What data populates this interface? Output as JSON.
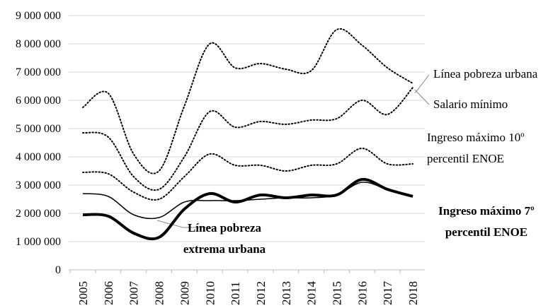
{
  "chart_data": {
    "type": "line",
    "categories": [
      "2005",
      "2006",
      "2007",
      "2008",
      "2009",
      "2010",
      "2011",
      "2012",
      "2013",
      "2014",
      "2015",
      "2016",
      "2017",
      "2018"
    ],
    "ylim": [
      0,
      9000000
    ],
    "yticks": [
      0,
      {
        "value": 1000000,
        "label": "1 000 000"
      },
      {
        "value": 2000000,
        "label": "2 000 000"
      },
      {
        "value": 3000000,
        "label": "3 000 000"
      },
      {
        "value": 4000000,
        "label": "4 000 000"
      },
      {
        "value": 5000000,
        "label": "5 000 000"
      },
      {
        "value": 6000000,
        "label": "6 000 000"
      },
      {
        "value": 7000000,
        "label": "7 000 000"
      },
      {
        "value": 8000000,
        "label": "8 000 000"
      },
      {
        "value": 9000000,
        "label": "9 000 000"
      }
    ],
    "grid": true,
    "series": [
      {
        "name": "Línea pobreza urbana",
        "color": "#000000",
        "values": [
          5750000,
          6250000,
          4100000,
          3500000,
          5800000,
          8000000,
          7150000,
          7300000,
          7100000,
          7050000,
          8500000,
          7950000,
          7150000,
          6600000
        ]
      },
      {
        "name": "Salario mínimo",
        "color": "#000000",
        "values": [
          4850000,
          4700000,
          3300000,
          2850000,
          4000000,
          5600000,
          5050000,
          5250000,
          5150000,
          5300000,
          5350000,
          6000000,
          5500000,
          6450000
        ]
      },
      {
        "name": "Ingreso máximo 10º percentil ENOE",
        "color": "#000000",
        "values": [
          3450000,
          3400000,
          2750000,
          2500000,
          3300000,
          4100000,
          3700000,
          3700000,
          3500000,
          3700000,
          3750000,
          4300000,
          3750000,
          3750000
        ]
      },
      {
        "name": "Línea pobreza extrema urbana",
        "color": "#000000",
        "values": [
          2700000,
          2600000,
          1950000,
          1850000,
          2400000,
          2450000,
          2450000,
          2500000,
          2550000,
          2550000,
          2650000,
          3100000,
          2850000,
          2600000
        ]
      },
      {
        "name": "Ingreso máximo 7º percentil ENOE",
        "color": "#000000",
        "values": [
          1950000,
          1900000,
          1300000,
          1150000,
          2150000,
          2700000,
          2400000,
          2650000,
          2550000,
          2650000,
          2650000,
          3200000,
          2850000,
          2600000
        ]
      }
    ]
  }
}
